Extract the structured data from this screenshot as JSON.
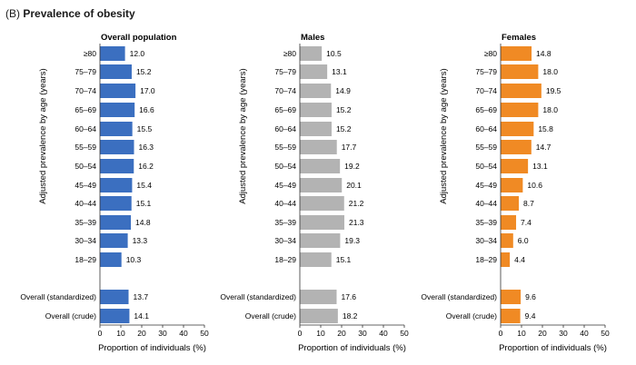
{
  "figure": {
    "panel_letter": "(B)",
    "title": "Prevalence of obesity"
  },
  "chart_data": [
    {
      "type": "bar",
      "orientation": "horizontal",
      "title": "Overall population",
      "color": "#3b6fc0",
      "categories": [
        "≥80",
        "75–79",
        "70–74",
        "65–69",
        "60–64",
        "55–59",
        "50–54",
        "45–49",
        "40–44",
        "35–39",
        "30–34",
        "18–29",
        "Overall (standardized)",
        "Overall (crude)"
      ],
      "values": [
        12.0,
        15.2,
        17.0,
        16.6,
        15.5,
        16.3,
        16.2,
        15.4,
        15.1,
        14.8,
        13.3,
        10.3,
        13.7,
        14.1
      ],
      "value_labels": [
        "12.0",
        "15.2",
        "17.0",
        "16.6",
        "15.5",
        "16.3",
        "16.2",
        "15.4",
        "15.1",
        "14.8",
        "13.3",
        "10.3",
        "13.7",
        "14.1"
      ],
      "xlabel": "Proportion of individuals (%)",
      "ylabel": "Adjusted prevalence by age (years)",
      "xlim": [
        0,
        50
      ],
      "xticks": [
        "0",
        "10",
        "20",
        "30",
        "40",
        "50"
      ],
      "grid": false,
      "legend": "none"
    },
    {
      "type": "bar",
      "orientation": "horizontal",
      "title": "Males",
      "color": "#b3b3b3",
      "categories": [
        "≥80",
        "75–79",
        "70–74",
        "65–69",
        "60–64",
        "55–59",
        "50–54",
        "45–49",
        "40–44",
        "35–39",
        "30–34",
        "18–29",
        "Overall (standardized)",
        "Overall (crude)"
      ],
      "values": [
        10.5,
        13.1,
        14.9,
        15.2,
        15.2,
        17.7,
        19.2,
        20.1,
        21.2,
        21.3,
        19.3,
        15.1,
        17.6,
        18.2
      ],
      "value_labels": [
        "10.5",
        "13.1",
        "14.9",
        "15.2",
        "15.2",
        "17.7",
        "19.2",
        "20.1",
        "21.2",
        "21.3",
        "19.3",
        "15.1",
        "17.6",
        "18.2"
      ],
      "xlabel": "Proportion of individuals (%)",
      "ylabel": "Adjusted prevalence by age (years)",
      "xlim": [
        0,
        50
      ],
      "xticks": [
        "0",
        "10",
        "20",
        "30",
        "40",
        "50"
      ],
      "grid": false,
      "legend": "none"
    },
    {
      "type": "bar",
      "orientation": "horizontal",
      "title": "Females",
      "color": "#f08a24",
      "categories": [
        "≥80",
        "75–79",
        "70–74",
        "65–69",
        "60–64",
        "55–59",
        "50–54",
        "45–49",
        "40–44",
        "35–39",
        "30–34",
        "18–29",
        "Overall (standardized)",
        "Overall (crude)"
      ],
      "values": [
        14.8,
        18.0,
        19.5,
        18.0,
        15.8,
        14.7,
        13.1,
        10.6,
        8.7,
        7.4,
        6.0,
        4.4,
        9.6,
        9.4
      ],
      "value_labels": [
        "14.8",
        "18.0",
        "19.5",
        "18.0",
        "15.8",
        "14.7",
        "13.1",
        "10.6",
        "8.7",
        "7.4",
        "6.0",
        "4.4",
        "9.6",
        "9.4"
      ],
      "xlabel": "Proportion of individuals (%)",
      "ylabel": "Adjusted prevalence by age (years)",
      "xlim": [
        0,
        50
      ],
      "xticks": [
        "0",
        "10",
        "20",
        "30",
        "40",
        "50"
      ],
      "grid": false,
      "legend": "none"
    }
  ]
}
